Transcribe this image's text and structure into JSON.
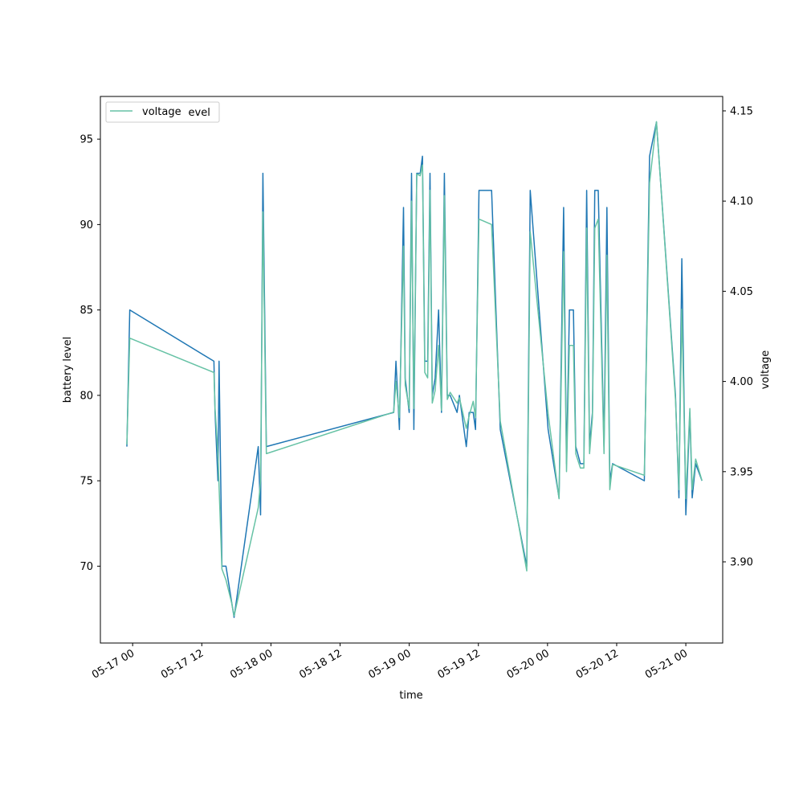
{
  "chart_data": {
    "type": "line",
    "title": "",
    "xlabel": "time",
    "ylabel_left": "battery level",
    "ylabel_right": "voltage",
    "x_ticks": [
      "05-17 00",
      "05-17 12",
      "05-18 00",
      "05-18 12",
      "05-19 00",
      "05-19 12",
      "05-20 00",
      "05-20 12",
      "05-21 00"
    ],
    "x_tick_hours": [
      0,
      12,
      24,
      36,
      48,
      60,
      72,
      84,
      96
    ],
    "xlim_hours": [
      -5.6,
      102.4
    ],
    "y_left_ticks": [
      "70",
      "75",
      "80",
      "85",
      "90",
      "95"
    ],
    "y_left_tick_values": [
      70,
      75,
      80,
      85,
      90,
      95
    ],
    "ylim_left": [
      65.5,
      97.5
    ],
    "y_right_ticks": [
      "3.90",
      "3.95",
      "4.00",
      "4.05",
      "4.10",
      "4.15"
    ],
    "y_right_tick_values": [
      3.9,
      3.95,
      4.0,
      4.05,
      4.1,
      4.15
    ],
    "ylim_right": [
      3.855,
      4.158
    ],
    "legend": {
      "visible_text": "voltage",
      "occluded_text": "battery_level",
      "placement": "upper left"
    },
    "grid": false,
    "series": [
      {
        "name": "battery_level",
        "axis": "left",
        "color": "#1f77b4",
        "points": [
          [
            -1.0,
            77
          ],
          [
            -0.5,
            85
          ],
          [
            14.1,
            82
          ],
          [
            14.3,
            79
          ],
          [
            14.8,
            75
          ],
          [
            15.0,
            82
          ],
          [
            15.5,
            70
          ],
          [
            16.2,
            70
          ],
          [
            17.6,
            67
          ],
          [
            21.8,
            77
          ],
          [
            22.2,
            73
          ],
          [
            22.6,
            93
          ],
          [
            23.2,
            77
          ],
          [
            45.3,
            79
          ],
          [
            45.7,
            82
          ],
          [
            46.3,
            78
          ],
          [
            47.0,
            91
          ],
          [
            47.3,
            81
          ],
          [
            48.0,
            79
          ],
          [
            48.4,
            93
          ],
          [
            48.8,
            78
          ],
          [
            49.3,
            93
          ],
          [
            49.9,
            93
          ],
          [
            50.3,
            94
          ],
          [
            50.7,
            82
          ],
          [
            51.2,
            82
          ],
          [
            51.6,
            93
          ],
          [
            52.0,
            80
          ],
          [
            52.5,
            81
          ],
          [
            53.1,
            85
          ],
          [
            53.6,
            79
          ],
          [
            54.1,
            93
          ],
          [
            54.6,
            80
          ],
          [
            55.1,
            80
          ],
          [
            56.3,
            79
          ],
          [
            56.7,
            80
          ],
          [
            57.9,
            77
          ],
          [
            58.4,
            79
          ],
          [
            59.1,
            79
          ],
          [
            59.5,
            78
          ],
          [
            60.1,
            92
          ],
          [
            62.3,
            92
          ],
          [
            63.8,
            78
          ],
          [
            68.4,
            70
          ],
          [
            69.0,
            92
          ],
          [
            72.1,
            78
          ],
          [
            74.0,
            74
          ],
          [
            74.8,
            91
          ],
          [
            75.3,
            76
          ],
          [
            75.8,
            85
          ],
          [
            76.5,
            85
          ],
          [
            76.9,
            77
          ],
          [
            77.7,
            76
          ],
          [
            78.3,
            76
          ],
          [
            78.8,
            92
          ],
          [
            79.3,
            77
          ],
          [
            79.8,
            79
          ],
          [
            80.2,
            92
          ],
          [
            80.8,
            92
          ],
          [
            81.8,
            77
          ],
          [
            82.3,
            91
          ],
          [
            82.8,
            75
          ],
          [
            83.3,
            76
          ],
          [
            88.8,
            75
          ],
          [
            89.7,
            94
          ],
          [
            90.9,
            96
          ],
          [
            94.2,
            80
          ],
          [
            94.8,
            74
          ],
          [
            95.3,
            88
          ],
          [
            96.0,
            73
          ],
          [
            96.7,
            79
          ],
          [
            97.1,
            74
          ],
          [
            97.7,
            76
          ],
          [
            98.8,
            75
          ]
        ]
      },
      {
        "name": "voltage",
        "axis": "right",
        "color": "#66c2a5",
        "points": [
          [
            -1.0,
            3.965
          ],
          [
            -0.5,
            4.024
          ],
          [
            14.1,
            4.005
          ],
          [
            14.3,
            3.985
          ],
          [
            14.8,
            3.96
          ],
          [
            15.0,
            3.942
          ],
          [
            15.5,
            3.896
          ],
          [
            16.2,
            3.89
          ],
          [
            17.2,
            3.877
          ],
          [
            17.6,
            3.87
          ],
          [
            21.8,
            3.93
          ],
          [
            22.2,
            3.945
          ],
          [
            22.6,
            4.094
          ],
          [
            23.2,
            3.96
          ],
          [
            45.3,
            3.983
          ],
          [
            45.7,
            4.0
          ],
          [
            46.3,
            3.98
          ],
          [
            47.0,
            4.075
          ],
          [
            47.3,
            3.998
          ],
          [
            48.0,
            3.985
          ],
          [
            48.4,
            4.1
          ],
          [
            48.8,
            3.985
          ],
          [
            49.3,
            4.115
          ],
          [
            49.9,
            4.114
          ],
          [
            50.3,
            4.12
          ],
          [
            50.7,
            4.005
          ],
          [
            51.2,
            4.002
          ],
          [
            51.6,
            4.106
          ],
          [
            52.0,
            3.988
          ],
          [
            52.5,
            3.995
          ],
          [
            53.1,
            4.02
          ],
          [
            53.6,
            3.984
          ],
          [
            54.1,
            4.103
          ],
          [
            54.6,
            3.99
          ],
          [
            55.1,
            3.994
          ],
          [
            56.3,
            3.988
          ],
          [
            56.7,
            3.991
          ],
          [
            57.9,
            3.974
          ],
          [
            58.4,
            3.981
          ],
          [
            59.1,
            3.989
          ],
          [
            59.5,
            3.98
          ],
          [
            60.1,
            4.09
          ],
          [
            62.3,
            4.087
          ],
          [
            63.8,
            3.978
          ],
          [
            68.4,
            3.895
          ],
          [
            69.0,
            4.083
          ],
          [
            72.1,
            3.982
          ],
          [
            74.0,
            3.935
          ],
          [
            74.8,
            4.072
          ],
          [
            75.3,
            3.95
          ],
          [
            75.8,
            4.02
          ],
          [
            76.5,
            4.02
          ],
          [
            76.9,
            3.96
          ],
          [
            77.7,
            3.952
          ],
          [
            78.3,
            3.952
          ],
          [
            78.8,
            4.085
          ],
          [
            79.3,
            3.96
          ],
          [
            79.8,
            3.98
          ],
          [
            80.2,
            4.085
          ],
          [
            80.8,
            4.09
          ],
          [
            81.8,
            3.96
          ],
          [
            82.3,
            4.07
          ],
          [
            82.8,
            3.94
          ],
          [
            83.3,
            3.954
          ],
          [
            88.8,
            3.948
          ],
          [
            89.7,
            4.11
          ],
          [
            90.9,
            4.144
          ],
          [
            94.2,
            3.99
          ],
          [
            94.8,
            3.94
          ],
          [
            95.3,
            4.04
          ],
          [
            96.0,
            3.935
          ],
          [
            96.7,
            3.985
          ],
          [
            97.1,
            3.94
          ],
          [
            97.7,
            3.957
          ],
          [
            98.8,
            3.945
          ]
        ]
      }
    ]
  }
}
